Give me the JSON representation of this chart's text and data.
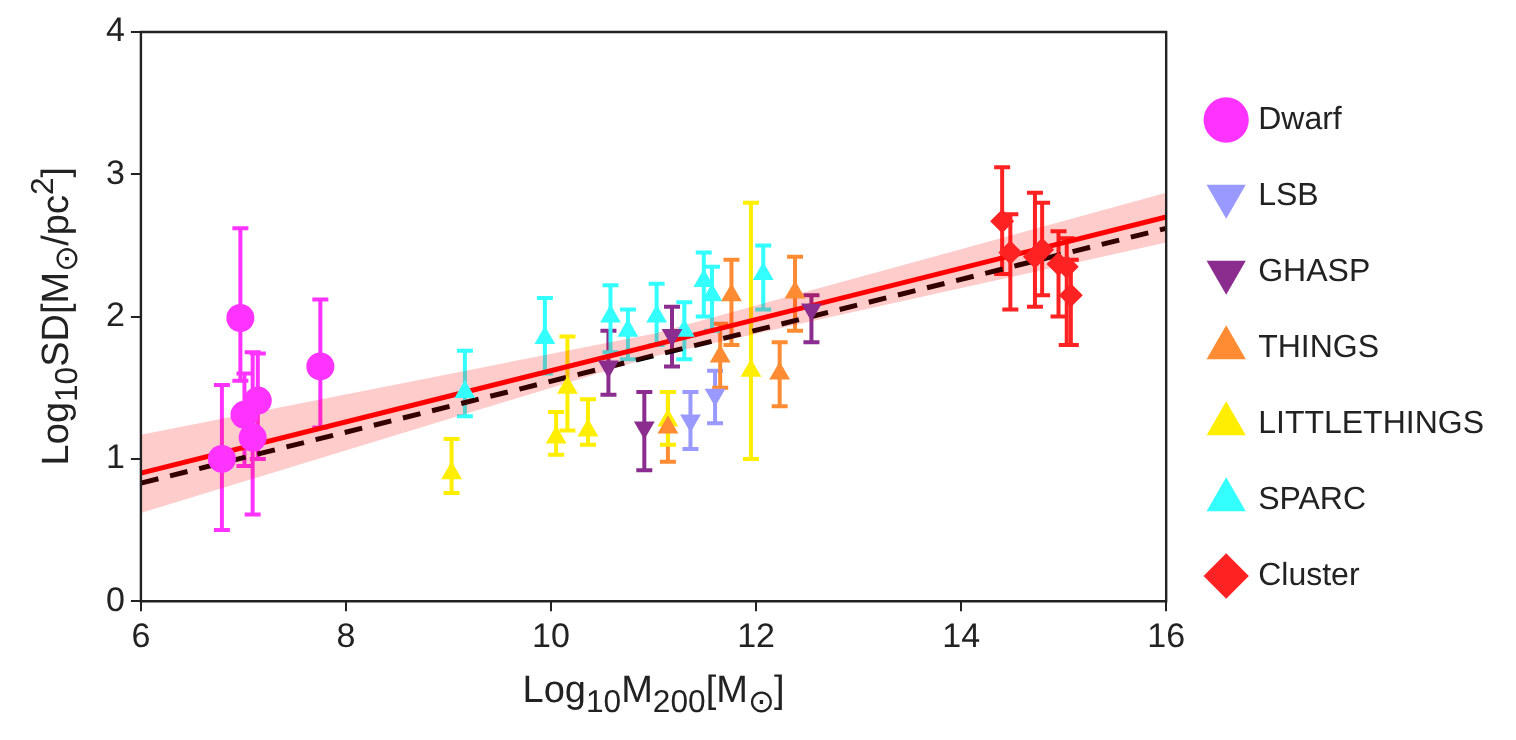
{
  "chart_data": {
    "type": "scatter",
    "xlabel": "Log$_{10}$M$_{200}$[M$_{⊙}$]",
    "ylabel": "Log$_{10}$SD[M$_{⊙}$/pc$^{2}$]",
    "xlim": [
      6,
      16
    ],
    "xticks": [
      6,
      8,
      10,
      12,
      14,
      16
    ],
    "ylim": [
      0,
      4
    ],
    "yticks": [
      0,
      1,
      2,
      3,
      4
    ],
    "grid": false,
    "legend": "right",
    "series": [
      {
        "name": "Dwarf",
        "color": "#ff33ff",
        "marker": "circle",
        "x": [
          6.79,
          6.97,
          7.01,
          7.09,
          7.14,
          7.75
        ],
        "values": [
          1.0,
          1.99,
          1.31,
          1.15,
          1.41,
          1.65
        ],
        "errors": [
          [
            0.5,
            1.52
          ],
          [
            1.55,
            2.62
          ],
          [
            0.95,
            1.6
          ],
          [
            0.61,
            1.75
          ],
          [
            1.0,
            1.74
          ],
          [
            1.22,
            2.12
          ]
        ]
      },
      {
        "name": "LSB",
        "color": "#9999ff",
        "marker": "triangle-down",
        "x": [
          11.36,
          11.6
        ],
        "values": [
          1.27,
          1.45
        ],
        "errors": [
          [
            1.07,
            1.47
          ],
          [
            1.25,
            1.62
          ]
        ]
      },
      {
        "name": "GHASP",
        "color": "#8b2c8f",
        "marker": "triangle-down",
        "x": [
          10.56,
          10.91,
          11.18,
          12.54
        ],
        "values": [
          1.65,
          1.22,
          1.87,
          2.05
        ],
        "errors": [
          [
            1.45,
            1.9
          ],
          [
            0.92,
            1.47
          ],
          [
            1.65,
            2.07
          ],
          [
            1.82,
            2.15
          ]
        ]
      },
      {
        "name": "THINGS",
        "color": "#ff8c33",
        "marker": "triangle",
        "x": [
          11.14,
          11.65,
          11.76,
          12.23,
          12.38
        ],
        "values": [
          1.22,
          1.72,
          2.15,
          1.6,
          2.17
        ],
        "errors": [
          [
            0.98,
            1.47
          ],
          [
            1.5,
            1.95
          ],
          [
            1.8,
            2.4
          ],
          [
            1.37,
            1.82
          ],
          [
            1.9,
            2.42
          ]
        ]
      },
      {
        "name": "LITTLETHINGS",
        "color": "#ffee00",
        "marker": "triangle",
        "x": [
          9.03,
          10.05,
          10.16,
          10.36,
          11.14,
          11.95
        ],
        "values": [
          0.9,
          1.15,
          1.5,
          1.2,
          1.27,
          1.62
        ],
        "errors": [
          [
            0.76,
            1.14
          ],
          [
            1.03,
            1.33
          ],
          [
            1.2,
            1.86
          ],
          [
            1.1,
            1.42
          ],
          [
            1.1,
            1.47
          ],
          [
            1.0,
            2.8
          ]
        ]
      },
      {
        "name": "SPARC",
        "color": "#33ffff",
        "marker": "triangle",
        "x": [
          9.16,
          9.94,
          10.58,
          10.75,
          11.03,
          11.3,
          11.49,
          11.57,
          12.07
        ],
        "values": [
          1.47,
          1.85,
          2.0,
          1.9,
          2.0,
          1.9,
          2.25,
          2.15,
          2.3
        ],
        "errors": [
          [
            1.3,
            1.76
          ],
          [
            1.6,
            2.13
          ],
          [
            1.75,
            2.22
          ],
          [
            1.7,
            2.05
          ],
          [
            1.8,
            2.23
          ],
          [
            1.7,
            2.1
          ],
          [
            2.0,
            2.45
          ],
          [
            1.9,
            2.35
          ],
          [
            2.05,
            2.5
          ]
        ]
      },
      {
        "name": "Cluster",
        "color": "#ff2222",
        "marker": "diamond",
        "x": [
          14.4,
          14.48,
          14.72,
          14.79,
          14.95,
          15.03,
          15.07
        ],
        "values": [
          2.67,
          2.45,
          2.42,
          2.47,
          2.37,
          2.35,
          2.15
        ],
        "errors": [
          [
            2.3,
            3.05
          ],
          [
            2.05,
            2.72
          ],
          [
            2.07,
            2.87
          ],
          [
            2.15,
            2.8
          ],
          [
            2.0,
            2.6
          ],
          [
            1.8,
            2.55
          ],
          [
            1.8,
            2.4
          ]
        ]
      },
      {
        "type": "line",
        "color": "#ff0000",
        "line_style": "solid",
        "marker": "none",
        "x": [
          6,
          11,
          16
        ],
        "values": [
          0.9,
          1.8,
          2.7
        ],
        "lower": [
          0.62,
          1.72,
          2.52
        ],
        "upper": [
          1.17,
          1.88,
          2.87
        ]
      },
      {
        "type": "line",
        "color": "#000000",
        "line_style": "dashed",
        "marker": "none",
        "x": [
          6,
          16
        ],
        "values": [
          0.83,
          2.62
        ]
      }
    ]
  }
}
